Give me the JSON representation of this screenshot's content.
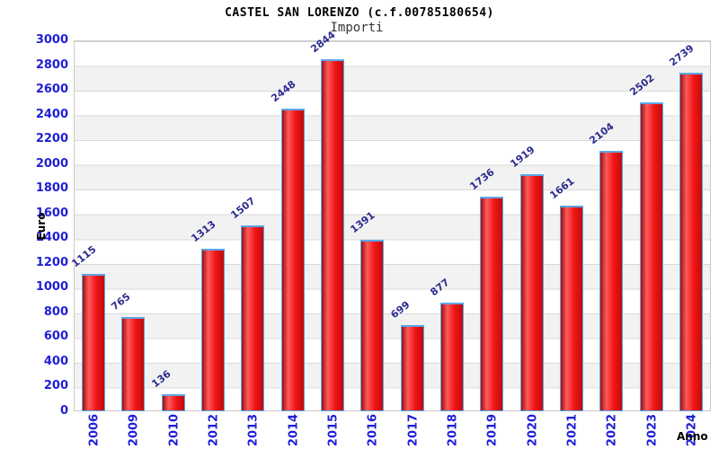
{
  "chart_data": {
    "type": "bar",
    "title": "CASTEL SAN LORENZO (c.f.00785180654)",
    "subtitle": "Importi",
    "xlabel": "Anno",
    "ylabel": "Euro",
    "categories": [
      "2006",
      "2009",
      "2010",
      "2012",
      "2013",
      "2014",
      "2015",
      "2016",
      "2017",
      "2018",
      "2019",
      "2020",
      "2021",
      "2022",
      "2023",
      "2024"
    ],
    "values": [
      1115,
      765,
      136,
      1313,
      1507,
      2448,
      2844,
      1391,
      699,
      877,
      1736,
      1919,
      1661,
      2104,
      2502,
      2739
    ],
    "ylim": [
      0,
      3000
    ],
    "ytick_step": 200,
    "yticks": [
      0,
      200,
      400,
      600,
      800,
      1000,
      1200,
      1400,
      1600,
      1800,
      2000,
      2200,
      2400,
      2600,
      2800,
      3000
    ],
    "grid": "horizontal-bands",
    "legend": "none",
    "colors": {
      "tick_label": "#1f1fd6",
      "data_label": "#2b2b8f",
      "bar_border": "#5aa7e8",
      "bar_gradient_dark_edge": "#9e1010",
      "bar_gradient_highlight": "#ff5a5a",
      "bar_gradient_main": "#f01515",
      "bar_gradient_right_edge": "#c00d0d",
      "band_alt": "#f2f2f2",
      "gridline": "#d9d9d9",
      "plot_border": "#c9c9c9",
      "title": "#000000",
      "subtitle": "#333333",
      "axis_title": "#000000"
    }
  }
}
